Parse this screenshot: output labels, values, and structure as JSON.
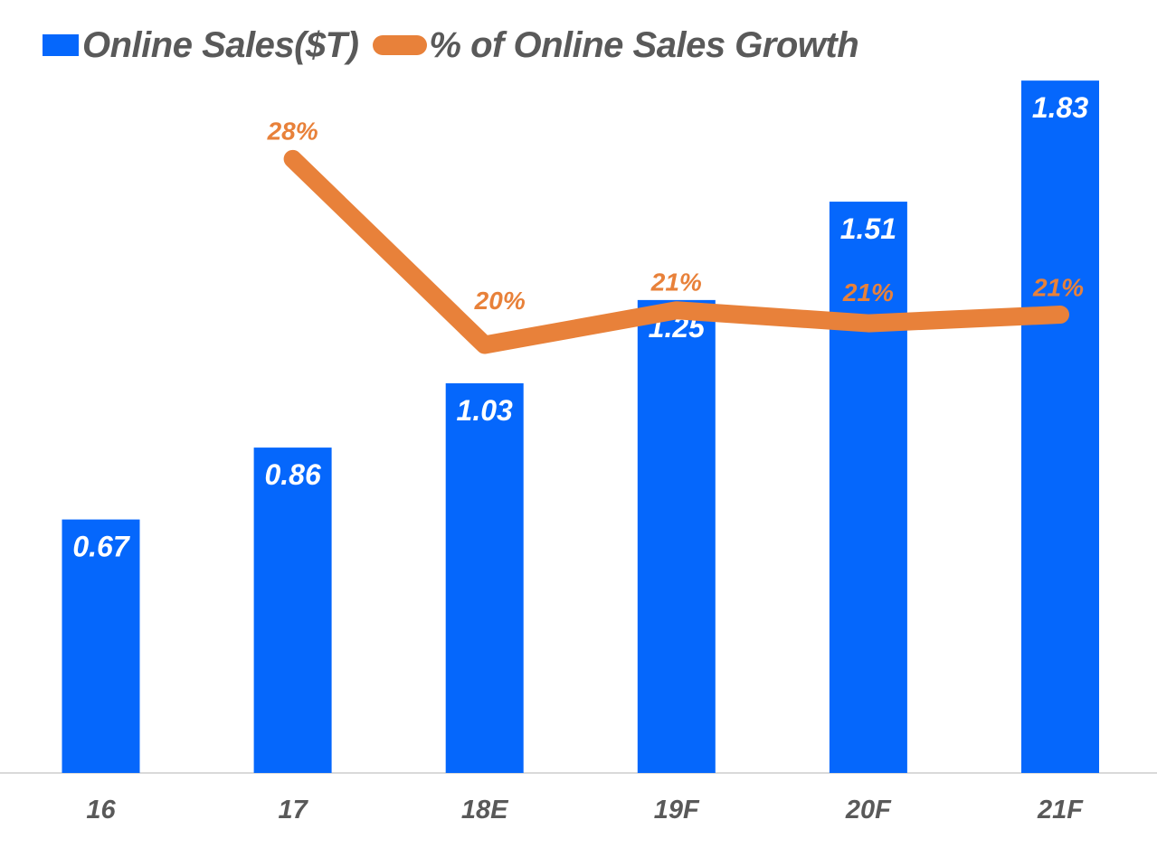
{
  "background_color": "#ffffff",
  "legend": {
    "position": "top-left",
    "bar_swatch_color": "#0567fc",
    "line_swatch_color": "#e8813a",
    "text_color": "#595959"
  },
  "chart_data": {
    "type": "combo",
    "title": "",
    "categories": [
      "16",
      "17",
      "18E",
      "19F",
      "20F",
      "21F"
    ],
    "series": [
      {
        "name": "Online Sales($T)",
        "type": "bar",
        "axis": "primary",
        "color": "#0567fc",
        "values": [
          0.67,
          0.86,
          1.03,
          1.25,
          1.51,
          1.83
        ],
        "data_labels": [
          "0.67",
          "0.86",
          "1.03",
          "1.25",
          "1.51",
          "1.83"
        ],
        "data_label_color": "#ffffff",
        "data_label_position": "inside-top"
      },
      {
        "name": "% of Online Sales Growth",
        "type": "line",
        "axis": "secondary",
        "color": "#e8813a",
        "values": [
          null,
          28.4,
          19.8,
          21.4,
          20.8,
          21.2
        ],
        "data_labels": [
          null,
          "28%",
          "20%",
          "21%",
          "21%",
          "21%"
        ],
        "data_label_color": "#e8813a",
        "data_label_position": "above"
      }
    ],
    "ylim_primary": [
      0,
      2.0
    ],
    "ylim_secondary": [
      0,
      35
    ],
    "grid": false,
    "y_axis_visible": false,
    "legend_position": "top-left",
    "x_axis": {
      "line_color": "#d9d9d9",
      "tick_label_color": "#595959"
    }
  }
}
